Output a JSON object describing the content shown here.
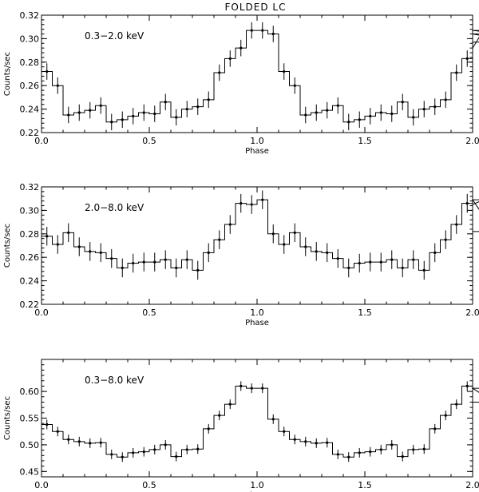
{
  "figure": {
    "title": "FOLDED LC"
  },
  "chart_data": [
    {
      "type": "line",
      "label": "0.3−2.0 keV",
      "xlabel": "Phase",
      "ylabel": "Counts/sec",
      "xlim": [
        0.0,
        2.0
      ],
      "ylim": [
        0.22,
        0.32
      ],
      "xticks": [
        "0.0",
        "0.5",
        "1.0",
        "1.5",
        "2.0"
      ],
      "yticks": [
        "0.22",
        "0.24",
        "0.26",
        "0.28",
        "0.30",
        "0.32"
      ],
      "bin_width": 0.05,
      "error": 0.007,
      "values": [
        0.272,
        0.26,
        0.235,
        0.237,
        0.239,
        0.243,
        0.229,
        0.231,
        0.234,
        0.237,
        0.236,
        0.246,
        0.233,
        0.24,
        0.242,
        0.248,
        0.271,
        0.283,
        0.292,
        0.307,
        0.307,
        0.304,
        0.272,
        0.26,
        0.235,
        0.237,
        0.239,
        0.243,
        0.229,
        0.231,
        0.234,
        0.237,
        0.236,
        0.246,
        0.233,
        0.24,
        0.242,
        0.248,
        0.271,
        0.283,
        0.292,
        0.307,
        0.307,
        0.304,
        0.297
      ]
    },
    {
      "type": "line",
      "label": "2.0−8.0 keV",
      "xlabel": "Phase",
      "ylabel": "Counts/sec",
      "xlim": [
        0.0,
        2.0
      ],
      "ylim": [
        0.22,
        0.32
      ],
      "xticks": [
        "0.0",
        "0.5",
        "1.0",
        "1.5",
        "2.0"
      ],
      "yticks": [
        "0.22",
        "0.24",
        "0.26",
        "0.28",
        "0.30",
        "0.32"
      ],
      "bin_width": 0.05,
      "error": 0.008,
      "values": [
        0.278,
        0.271,
        0.281,
        0.269,
        0.265,
        0.264,
        0.259,
        0.251,
        0.255,
        0.256,
        0.256,
        0.258,
        0.251,
        0.258,
        0.249,
        0.264,
        0.275,
        0.288,
        0.306,
        0.305,
        0.309,
        0.28,
        0.271,
        0.281,
        0.269,
        0.265,
        0.264,
        0.259,
        0.251,
        0.255,
        0.256,
        0.256,
        0.258,
        0.251,
        0.258,
        0.249,
        0.264,
        0.275,
        0.288,
        0.306,
        0.305,
        0.309,
        0.282
      ]
    },
    {
      "type": "line",
      "label": "0.3−8.0 keV",
      "xlabel": "Phase",
      "ylabel": "Counts/sec",
      "xlim": [
        0.0,
        2.0
      ],
      "ylim": [
        0.44,
        0.66
      ],
      "xticks": [
        "0.0",
        "0.5",
        "1.0",
        "1.5",
        "2.0"
      ],
      "yticks": [
        "0.45",
        "0.50",
        "0.55",
        "0.60"
      ],
      "bin_width": 0.05,
      "error": 0.009,
      "values": [
        0.538,
        0.525,
        0.51,
        0.506,
        0.503,
        0.504,
        0.482,
        0.477,
        0.485,
        0.487,
        0.491,
        0.5,
        0.478,
        0.491,
        0.492,
        0.53,
        0.555,
        0.576,
        0.61,
        0.606,
        0.606,
        0.548,
        0.525,
        0.51,
        0.506,
        0.503,
        0.504,
        0.482,
        0.477,
        0.485,
        0.487,
        0.491,
        0.5,
        0.478,
        0.491,
        0.492,
        0.53,
        0.555,
        0.576,
        0.61,
        0.606,
        0.606,
        0.58
      ]
    }
  ]
}
